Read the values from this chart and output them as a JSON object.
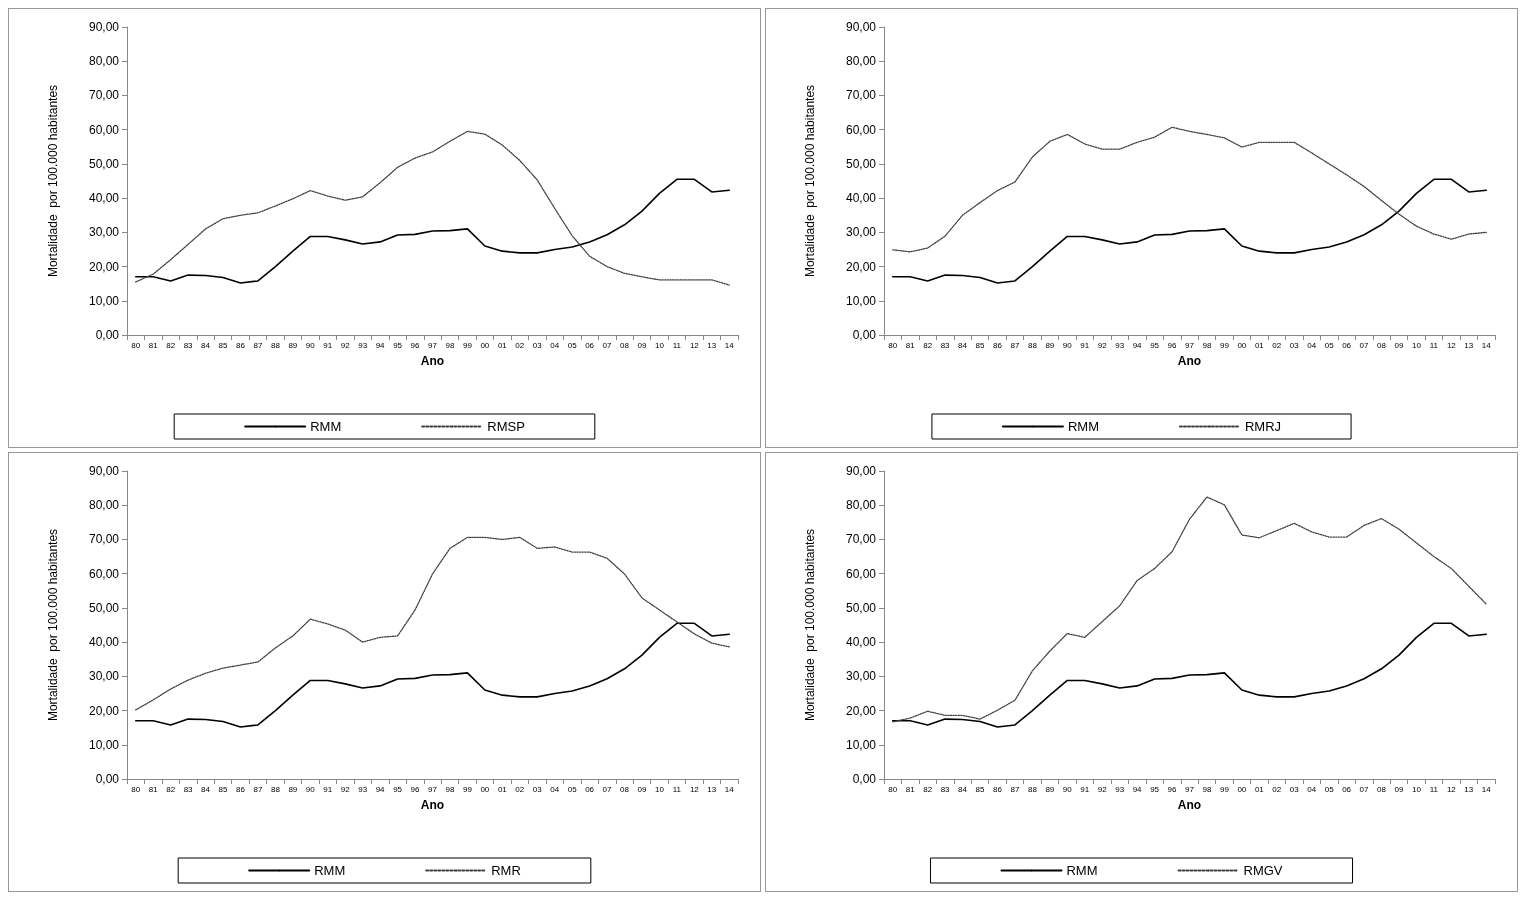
{
  "chart_data": [
    {
      "type": "line",
      "xlabel": "Ano",
      "ylabel": "Mortalidade  por 100.000 habitantes",
      "legend": "bottom",
      "marker": "none",
      "grid": false,
      "categories": [
        "80",
        "81",
        "82",
        "83",
        "84",
        "85",
        "86",
        "87",
        "88",
        "89",
        "90",
        "91",
        "92",
        "93",
        "94",
        "95",
        "96",
        "97",
        "98",
        "99",
        "00",
        "01",
        "02",
        "03",
        "04",
        "05",
        "06",
        "07",
        "08",
        "09",
        "10",
        "11",
        "12",
        "13",
        "14"
      ],
      "ylim": [
        0,
        90
      ],
      "yticks": [
        {
          "value": 0,
          "label": "0,00"
        },
        {
          "value": 10,
          "label": "10,00"
        },
        {
          "value": 20,
          "label": "20,00"
        },
        {
          "value": 30,
          "label": "30,00"
        },
        {
          "value": 40,
          "label": "40,00"
        },
        {
          "value": 50,
          "label": "50,00"
        },
        {
          "value": 60,
          "label": "60,00"
        },
        {
          "value": 70,
          "label": "70,00"
        },
        {
          "value": 80,
          "label": "80,00"
        },
        {
          "value": 90,
          "label": "90,00"
        }
      ],
      "series": [
        {
          "name": "RMM",
          "color": "#000000",
          "line_style": "solid",
          "values": [
            17,
            17,
            15.8,
            17.5,
            17.4,
            16.8,
            15.2,
            15.8,
            20,
            24.5,
            28.8,
            28.8,
            27.8,
            26.6,
            27.2,
            29.2,
            29.4,
            30.4,
            30.5,
            31,
            26,
            24.5,
            24,
            24,
            25,
            25.7,
            27.2,
            29.3,
            32.2,
            36.2,
            41.4,
            45.5,
            45.5,
            41.8,
            42.3
          ]
        },
        {
          "name": "RMSP",
          "color": "#404040",
          "line_style": "dotted",
          "values": [
            15.5,
            17.8,
            22,
            26.5,
            31,
            34,
            35,
            35.7,
            37.7,
            39.8,
            42.2,
            40.6,
            39.4,
            40.4,
            44.5,
            49,
            51.7,
            53.5,
            56.6,
            59.5,
            58.7,
            55.5,
            51,
            45.3,
            37,
            29,
            23,
            20,
            18,
            17,
            16.1,
            16.1,
            16.1,
            16.1,
            14.6
          ]
        }
      ]
    },
    {
      "type": "line",
      "xlabel": "Ano",
      "ylabel": "Mortalidade  por 100.000 habitantes",
      "legend": "bottom",
      "marker": "none",
      "grid": false,
      "categories": [
        "80",
        "81",
        "82",
        "83",
        "84",
        "85",
        "86",
        "87",
        "88",
        "89",
        "90",
        "91",
        "92",
        "93",
        "94",
        "95",
        "96",
        "97",
        "98",
        "99",
        "00",
        "01",
        "02",
        "03",
        "04",
        "05",
        "06",
        "07",
        "08",
        "09",
        "10",
        "11",
        "12",
        "13",
        "14"
      ],
      "ylim": [
        0,
        90
      ],
      "yticks": [
        {
          "value": 0,
          "label": "0,00"
        },
        {
          "value": 10,
          "label": "10,00"
        },
        {
          "value": 20,
          "label": "20,00"
        },
        {
          "value": 30,
          "label": "30,00"
        },
        {
          "value": 40,
          "label": "40,00"
        },
        {
          "value": 50,
          "label": "50,00"
        },
        {
          "value": 60,
          "label": "60,00"
        },
        {
          "value": 70,
          "label": "70,00"
        },
        {
          "value": 80,
          "label": "80,00"
        },
        {
          "value": 90,
          "label": "90,00"
        }
      ],
      "series": [
        {
          "name": "RMM",
          "color": "#000000",
          "line_style": "solid",
          "values": [
            17,
            17,
            15.8,
            17.5,
            17.4,
            16.8,
            15.2,
            15.8,
            20,
            24.5,
            28.8,
            28.8,
            27.8,
            26.6,
            27.2,
            29.2,
            29.4,
            30.4,
            30.5,
            31,
            26,
            24.5,
            24,
            24,
            25,
            25.7,
            27.2,
            29.3,
            32.2,
            36.2,
            41.4,
            45.5,
            45.5,
            41.8,
            42.3
          ]
        },
        {
          "name": "RMRJ",
          "color": "#404040",
          "line_style": "dotted",
          "values": [
            24.9,
            24.3,
            25.4,
            28.9,
            35,
            38.7,
            42.2,
            44.7,
            52,
            56.6,
            58.6,
            55.8,
            54.3,
            54.3,
            56.3,
            57.8,
            60.7,
            59.5,
            58.6,
            57.6,
            54.9,
            56.3,
            56.3,
            56.3,
            53.2,
            50,
            46.8,
            43.4,
            39.3,
            35.3,
            31.8,
            29.5,
            28,
            29.5,
            30
          ]
        }
      ]
    },
    {
      "type": "line",
      "xlabel": "Ano",
      "ylabel": "Mortalidade  por 100.000 habitantes",
      "legend": "bottom",
      "marker": "none",
      "grid": false,
      "categories": [
        "80",
        "81",
        "82",
        "83",
        "84",
        "85",
        "86",
        "87",
        "88",
        "89",
        "90",
        "91",
        "92",
        "93",
        "94",
        "95",
        "96",
        "97",
        "98",
        "99",
        "00",
        "01",
        "02",
        "03",
        "04",
        "05",
        "06",
        "07",
        "08",
        "09",
        "10",
        "11",
        "12",
        "13",
        "14"
      ],
      "ylim": [
        0,
        90
      ],
      "yticks": [
        {
          "value": 0,
          "label": "0,00"
        },
        {
          "value": 10,
          "label": "10,00"
        },
        {
          "value": 20,
          "label": "20,00"
        },
        {
          "value": 30,
          "label": "30,00"
        },
        {
          "value": 40,
          "label": "40,00"
        },
        {
          "value": 50,
          "label": "50,00"
        },
        {
          "value": 60,
          "label": "60,00"
        },
        {
          "value": 70,
          "label": "70,00"
        },
        {
          "value": 80,
          "label": "80,00"
        },
        {
          "value": 90,
          "label": "90,00"
        }
      ],
      "series": [
        {
          "name": "RMM",
          "color": "#000000",
          "line_style": "solid",
          "values": [
            17,
            17,
            15.8,
            17.5,
            17.4,
            16.8,
            15.2,
            15.8,
            20,
            24.5,
            28.8,
            28.8,
            27.8,
            26.6,
            27.2,
            29.2,
            29.4,
            30.4,
            30.5,
            31,
            26,
            24.5,
            24,
            24,
            25,
            25.7,
            27.2,
            29.3,
            32.2,
            36.2,
            41.4,
            45.5,
            45.5,
            41.8,
            42.3
          ]
        },
        {
          "name": "RMR",
          "color": "#404040",
          "line_style": "dotted",
          "values": [
            20.2,
            23.1,
            26.3,
            28.9,
            30.9,
            32.4,
            33.3,
            34.2,
            38.3,
            41.8,
            46.7,
            45.3,
            43.5,
            40,
            41.4,
            41.8,
            49.4,
            59.9,
            67.4,
            70.6,
            70.6,
            70,
            70.6,
            67.4,
            67.8,
            66.3,
            66.3,
            64.5,
            59.9,
            52.9,
            49.4,
            45.9,
            42.4,
            39.7,
            38.6
          ]
        }
      ]
    },
    {
      "type": "line",
      "xlabel": "Ano",
      "ylabel": "Mortalidade  por 100.000 habitantes",
      "legend": "bottom",
      "marker": "none",
      "grid": false,
      "categories": [
        "80",
        "81",
        "82",
        "83",
        "84",
        "85",
        "86",
        "87",
        "88",
        "89",
        "90",
        "91",
        "92",
        "93",
        "94",
        "95",
        "96",
        "97",
        "98",
        "99",
        "00",
        "01",
        "02",
        "03",
        "04",
        "05",
        "06",
        "07",
        "08",
        "09",
        "10",
        "11",
        "12",
        "13",
        "14"
      ],
      "ylim": [
        0,
        90
      ],
      "yticks": [
        {
          "value": 0,
          "label": "0,00"
        },
        {
          "value": 10,
          "label": "10,00"
        },
        {
          "value": 20,
          "label": "20,00"
        },
        {
          "value": 30,
          "label": "30,00"
        },
        {
          "value": 40,
          "label": "40,00"
        },
        {
          "value": 50,
          "label": "50,00"
        },
        {
          "value": 60,
          "label": "60,00"
        },
        {
          "value": 70,
          "label": "70,00"
        },
        {
          "value": 80,
          "label": "80,00"
        },
        {
          "value": 90,
          "label": "90,00"
        }
      ],
      "series": [
        {
          "name": "RMM",
          "color": "#000000",
          "line_style": "solid",
          "values": [
            17,
            17,
            15.8,
            17.5,
            17.4,
            16.8,
            15.2,
            15.8,
            20,
            24.5,
            28.8,
            28.8,
            27.8,
            26.6,
            27.2,
            29.2,
            29.4,
            30.4,
            30.5,
            31,
            26,
            24.5,
            24,
            24,
            25,
            25.7,
            27.2,
            29.3,
            32.2,
            36.2,
            41.4,
            45.5,
            45.5,
            41.8,
            42.3
          ]
        },
        {
          "name": "RMGV",
          "color": "#404040",
          "line_style": "dotted",
          "values": [
            16.7,
            17.8,
            19.8,
            18.6,
            18.6,
            17.5,
            20.1,
            23,
            31.6,
            37.4,
            42.5,
            41.4,
            46,
            50.6,
            58,
            61.5,
            66.4,
            75.9,
            82.4,
            80.1,
            71.3,
            70.5,
            72.6,
            74.7,
            72.2,
            70.7,
            70.7,
            74.1,
            76.1,
            73,
            69,
            65,
            61.5,
            56.3,
            51.1
          ]
        }
      ]
    }
  ]
}
